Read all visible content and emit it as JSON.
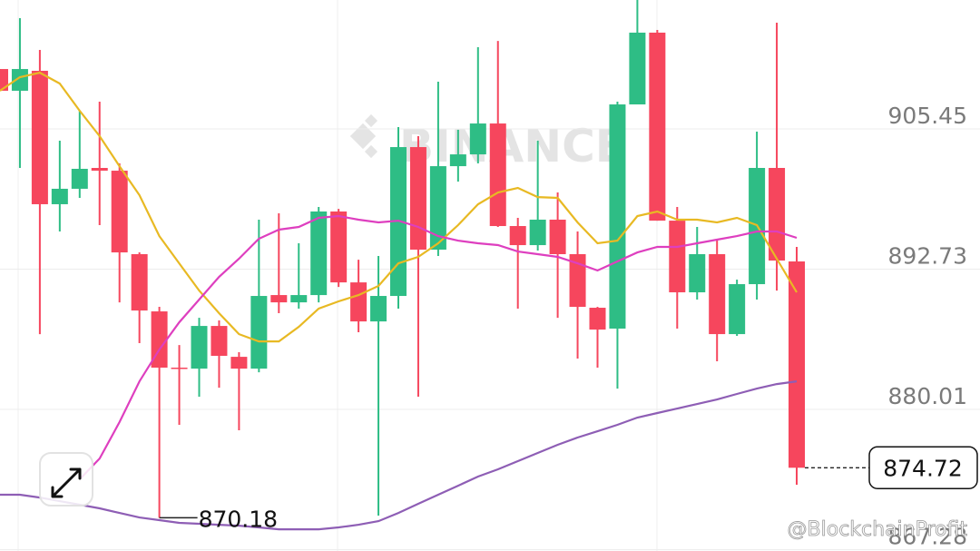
{
  "chart_data": {
    "type": "candlestick",
    "up_color": "#2ebd85",
    "down_color": "#f6465d",
    "open": [
      910.88,
      908.91,
      910.72,
      898.62,
      900.02,
      901.91,
      901.66,
      894.09,
      888.9,
      883.8,
      883.71,
      887.58,
      884.78,
      883.71,
      890.38,
      889.72,
      890.38,
      897.96,
      891.53,
      887.99,
      890.3,
      903.8,
      894.5,
      902.07,
      903.14,
      905.94,
      896.64,
      894.91,
      897.22,
      894.09,
      889.23,
      887.34,
      907.67,
      914.18,
      897.13,
      890.63,
      894.09,
      886.84,
      891.37,
      901.91,
      893.43
    ],
    "high": [
      910.88,
      915.49,
      912.61,
      904.38,
      907.1,
      907.92,
      902.32,
      894.25,
      889.31,
      885.85,
      888.32,
      888.08,
      885.2,
      897.22,
      897.79,
      895.08,
      898.37,
      898.2,
      893.59,
      893.92,
      905.61,
      904.79,
      909.73,
      905.37,
      912.86,
      913.43,
      897.38,
      904.38,
      899.69,
      896.15,
      889.31,
      907.92,
      917.14,
      914.42,
      898.37,
      896.56,
      895.32,
      891.78,
      905.2,
      915.08,
      894.75
    ],
    "low": [
      908.91,
      901.91,
      886.84,
      896.15,
      899.19,
      896.72,
      889.72,
      886.02,
      870.18,
      878.61,
      881.16,
      881.98,
      878.12,
      883.38,
      888.74,
      889.15,
      889.72,
      891.12,
      887.01,
      870.38,
      889.15,
      881.16,
      893.92,
      900.67,
      902.32,
      896.56,
      889.15,
      894.42,
      888.32,
      884.62,
      883.8,
      881.9,
      907.67,
      897.13,
      887.34,
      889.97,
      884.38,
      886.68,
      889.97,
      890.79,
      873.18
    ],
    "close": [
      908.91,
      910.88,
      898.62,
      900.02,
      901.83,
      901.66,
      894.25,
      888.98,
      883.8,
      883.71,
      887.58,
      884.87,
      883.71,
      890.3,
      889.72,
      890.38,
      897.96,
      891.53,
      887.99,
      890.3,
      903.8,
      894.5,
      902.07,
      903.14,
      905.94,
      896.64,
      894.91,
      897.22,
      894.09,
      889.31,
      887.25,
      907.67,
      914.18,
      897.13,
      890.63,
      894.09,
      886.84,
      891.37,
      901.91,
      893.51,
      874.72
    ],
    "series": [
      {
        "color": "#e8b923",
        "values": [
          908.91,
          910.14,
          910.55,
          909.57,
          907.1,
          904.79,
          902.07,
          899.44,
          895.73,
          893.26,
          890.79,
          888.74,
          886.84,
          886.18,
          886.18,
          887.5,
          889.15,
          889.81,
          890.38,
          891.21,
          893.26,
          893.84,
          895.08,
          896.72,
          898.62,
          899.69,
          900.1,
          899.27,
          899.19,
          896.97,
          895.08,
          895.32,
          897.55,
          897.96,
          897.22,
          897.22,
          896.97,
          897.38,
          896.72,
          893.68,
          890.63
        ]
      },
      {
        "color": "#de3fbf",
        "values": [
          null,
          null,
          null,
          null,
          873.67,
          875.56,
          878.86,
          882.56,
          885.44,
          887.91,
          889.97,
          892.03,
          893.68,
          895.49,
          896.31,
          896.56,
          897.38,
          897.55,
          897.22,
          896.97,
          897.13,
          896.56,
          895.73,
          895.32,
          895.08,
          894.91,
          894.33,
          894.09,
          893.84,
          893.26,
          892.61,
          893.43,
          894.25,
          894.75,
          894.75,
          895.08,
          895.41,
          895.73,
          896.15,
          896.15,
          895.57
        ]
      },
      {
        "color": "#8e5eb5",
        "values": [
          872.27,
          872.27,
          872.02,
          871.69,
          871.37,
          871.04,
          870.62,
          870.21,
          869.97,
          869.72,
          869.64,
          869.55,
          869.47,
          869.31,
          869.14,
          869.14,
          869.14,
          869.31,
          869.55,
          869.88,
          870.62,
          871.45,
          872.27,
          873.09,
          873.92,
          874.58,
          875.32,
          876.06,
          876.8,
          877.46,
          878.03,
          878.61,
          879.27,
          879.68,
          880.09,
          880.5,
          880.91,
          881.41,
          881.9,
          882.31,
          882.56
        ]
      }
    ],
    "ylim": [
      867.17,
      917.14
    ],
    "yticks": [
      905.45,
      892.73,
      880.01,
      867.28
    ],
    "grid": true,
    "low_annotation": "870.18",
    "last_price": "874.72",
    "watermark": "BINANCE",
    "credit": "@BlockchainProfit"
  }
}
